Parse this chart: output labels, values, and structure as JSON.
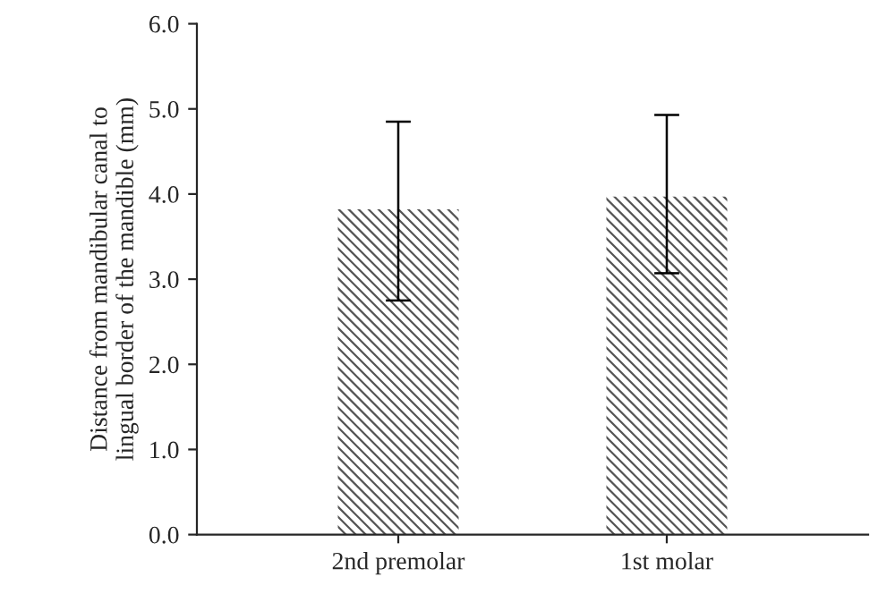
{
  "chart_data": {
    "type": "bar",
    "ylabel": "Distance from mandibular canal to\nlingual border of the mandible (mm)",
    "categories": [
      "2nd premolar",
      "1st molar"
    ],
    "values": [
      3.82,
      3.97
    ],
    "errors": [
      [
        2.75,
        4.85
      ],
      [
        3.07,
        4.93
      ]
    ],
    "color": "#555555",
    "ylim": [
      0,
      6
    ],
    "yticks": [
      {
        "value": 0,
        "label": "0.0"
      },
      {
        "value": 1,
        "label": "1.0"
      },
      {
        "value": 2,
        "label": "2.0"
      },
      {
        "value": 3,
        "label": "3.0"
      },
      {
        "value": 4,
        "label": "4.0"
      },
      {
        "value": 5,
        "label": "5.0"
      },
      {
        "value": 6,
        "label": "6.0"
      }
    ],
    "grid": false
  }
}
